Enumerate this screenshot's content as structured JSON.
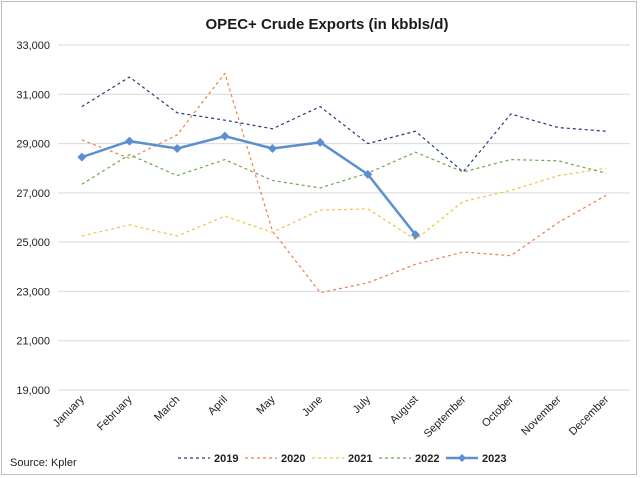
{
  "chart_data": {
    "type": "line",
    "title": "OPEC+ Crude Exports (in kbbls/d)",
    "categories": [
      "January",
      "February",
      "March",
      "April",
      "May",
      "June",
      "July",
      "August",
      "September",
      "October",
      "November",
      "December"
    ],
    "ylim": [
      19000,
      33000
    ],
    "yticks": [
      19000,
      21000,
      23000,
      25000,
      27000,
      29000,
      31000,
      33000
    ],
    "ytick_labels": [
      "19,000",
      "21,000",
      "23,000",
      "25,000",
      "27,000",
      "29,000",
      "31,000",
      "33,000"
    ],
    "grid": true,
    "legend_position": "bottom",
    "source": "Source: Kpler",
    "series": [
      {
        "name": "2019",
        "color": "#1f3c7a",
        "style": "dashed",
        "marker": "none",
        "values": [
          30500,
          31700,
          30250,
          29950,
          29600,
          30500,
          29000,
          29500,
          27850,
          30200,
          29650,
          29500
        ]
      },
      {
        "name": "2020",
        "color": "#e8834a",
        "style": "dashed",
        "marker": "none",
        "values": [
          29150,
          28400,
          29350,
          31850,
          25450,
          22950,
          23350,
          24100,
          24600,
          24450,
          25800,
          26900
        ]
      },
      {
        "name": "2021",
        "color": "#f2c14a",
        "style": "dashed",
        "marker": "none",
        "values": [
          25250,
          25700,
          25250,
          26050,
          25400,
          26300,
          26350,
          25100,
          26650,
          27100,
          27700,
          28000
        ]
      },
      {
        "name": "2022",
        "color": "#6aa84f",
        "style": "dashed",
        "marker": "none",
        "values": [
          27350,
          28550,
          27700,
          28350,
          27500,
          27200,
          27800,
          28650,
          27850,
          28350,
          28300,
          27800
        ]
      },
      {
        "name": "2023",
        "color": "#5b8fd0",
        "style": "solid",
        "marker": "diamond",
        "values": [
          28450,
          29100,
          28800,
          29300,
          28800,
          29050,
          27750,
          25300,
          null,
          null,
          null,
          null
        ]
      }
    ]
  }
}
